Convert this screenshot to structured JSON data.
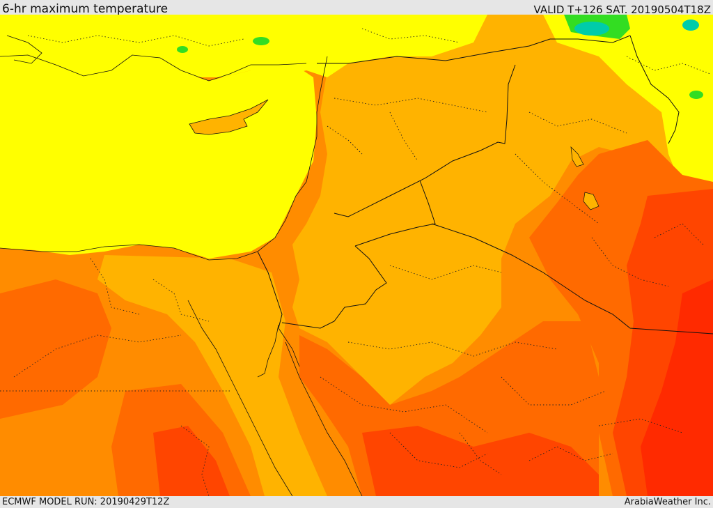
{
  "header": {
    "title": "6-hr maximum temperature",
    "valid": "VALID T+126 SAT. 20190504T18Z"
  },
  "footer": {
    "model_run": "ECMWF MODEL RUN: 20190429T12Z",
    "credit": "ArabiaWeather Inc."
  },
  "colors": {
    "sea_yellow": "#ffff00",
    "light_orange": "#ffb300",
    "orange": "#ff8c00",
    "dark_orange": "#ff6a00",
    "red_orange": "#ff4500",
    "red": "#ff2a00",
    "green": "#33dd22",
    "teal": "#00ccaa"
  }
}
